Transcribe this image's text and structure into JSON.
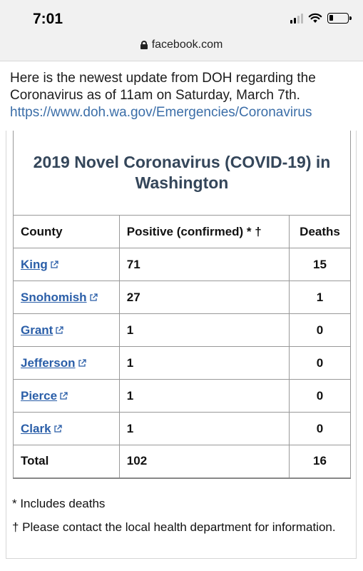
{
  "status": {
    "time": "7:01"
  },
  "browser": {
    "domain": "facebook.com"
  },
  "post": {
    "text": "Here is the newest update from DOH regarding the Coronavirus as of 11am on Saturday, March 7th.",
    "link": "https://www.doh.wa.gov/Emergencies/Coronavirus"
  },
  "card": {
    "title": "2019 Novel Coronavirus (COVID-19) in Washington",
    "headers": [
      "County",
      "Positive (confirmed) * †",
      "Deaths"
    ],
    "rows": [
      {
        "county": "King",
        "positive": "71",
        "deaths": "15"
      },
      {
        "county": "Snohomish",
        "positive": "27",
        "deaths": "1"
      },
      {
        "county": "Grant",
        "positive": "1",
        "deaths": "0"
      },
      {
        "county": "Jefferson",
        "positive": "1",
        "deaths": "0"
      },
      {
        "county": "Pierce",
        "positive": "1",
        "deaths": "0"
      },
      {
        "county": "Clark",
        "positive": "1",
        "deaths": "0"
      }
    ],
    "total": {
      "label": "Total",
      "positive": "102",
      "deaths": "16"
    },
    "notes": [
      "* Includes deaths",
      "† Please contact the local health department for information."
    ]
  },
  "colors": {
    "link": "#2a5ea8",
    "heading": "#34465a",
    "post_link": "#3b6ea8"
  }
}
